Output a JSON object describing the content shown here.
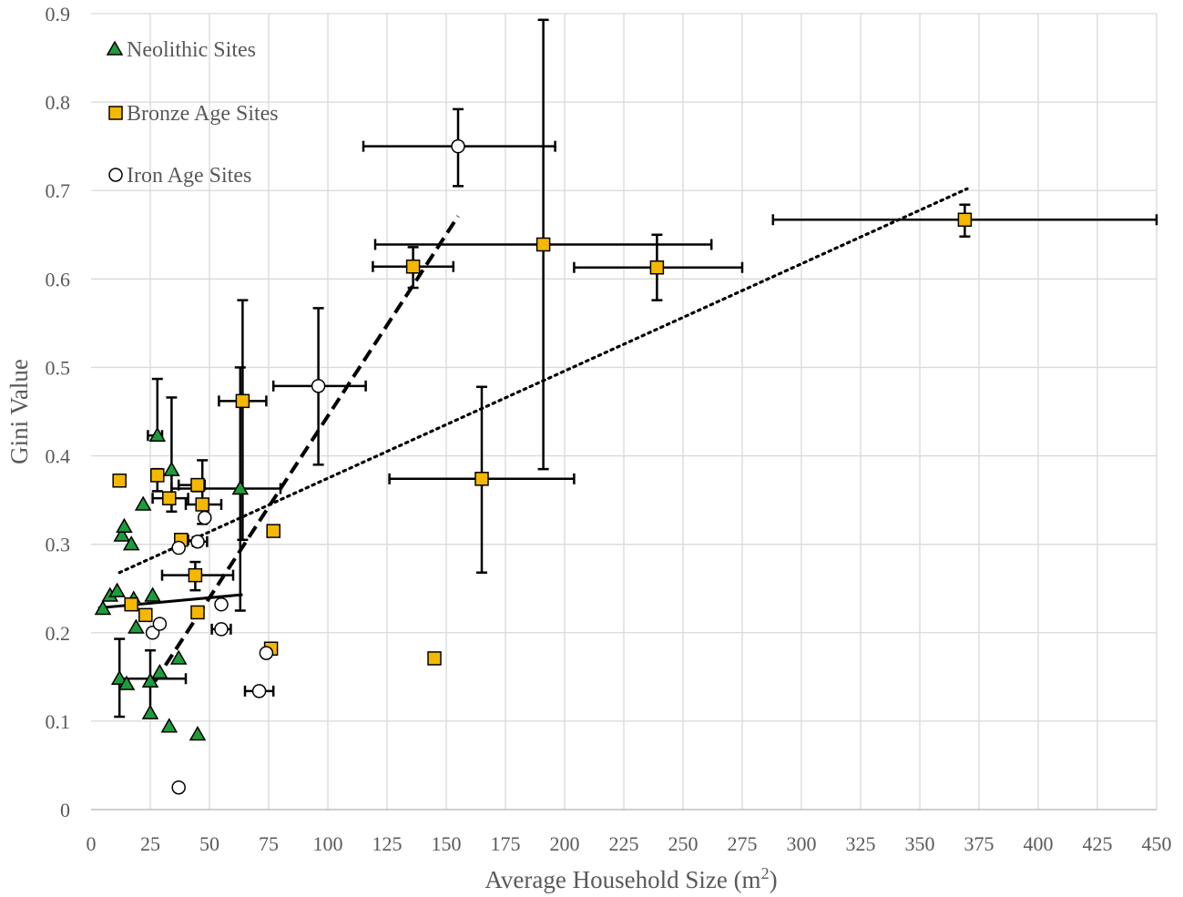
{
  "chart_data": {
    "type": "scatter",
    "xlabel": "Average Household Size (m",
    "xlabel_sup": "2",
    "xlabel_close": ")",
    "ylabel": "Gini Value",
    "xlim": [
      0,
      450
    ],
    "ylim": [
      0,
      0.9
    ],
    "x_ticks": [
      "0",
      "25",
      "50",
      "75",
      "100",
      "125",
      "150",
      "175",
      "200",
      "225",
      "250",
      "275",
      "300",
      "325",
      "350",
      "375",
      "400",
      "425",
      "450"
    ],
    "y_ticks": [
      "0",
      "0.1",
      "0.2",
      "0.3",
      "0.4",
      "0.5",
      "0.6",
      "0.7",
      "0.8",
      "0.9"
    ],
    "grid": true,
    "legend_position": "top-left",
    "series": [
      {
        "name": "Neolithic Sites",
        "marker": "triangle",
        "color": "#1e9c3c",
        "points": [
          {
            "x": 5,
            "y": 0.227
          },
          {
            "x": 8,
            "y": 0.242
          },
          {
            "x": 11,
            "y": 0.247
          },
          {
            "x": 12,
            "y": 0.148,
            "yerr": [
              0.105,
              0.193
            ],
            "xerr": [
              12,
              40
            ]
          },
          {
            "x": 13,
            "y": 0.31
          },
          {
            "x": 14,
            "y": 0.32
          },
          {
            "x": 15,
            "y": 0.142
          },
          {
            "x": 17,
            "y": 0.3
          },
          {
            "x": 18,
            "y": 0.238
          },
          {
            "x": 19,
            "y": 0.206
          },
          {
            "x": 22,
            "y": 0.345
          },
          {
            "x": 25,
            "y": 0.109
          },
          {
            "x": 25,
            "y": 0.145,
            "yerr": [
              0.105,
              0.18
            ]
          },
          {
            "x": 26,
            "y": 0.242
          },
          {
            "x": 28,
            "y": 0.423,
            "yerr": [
              0.42,
              0.487
            ],
            "xerr": [
              24,
              30
            ]
          },
          {
            "x": 29,
            "y": 0.155
          },
          {
            "x": 33,
            "y": 0.094
          },
          {
            "x": 34,
            "y": 0.384,
            "yerr": [
              0.337,
              0.466
            ]
          },
          {
            "x": 37,
            "y": 0.171
          },
          {
            "x": 45,
            "y": 0.085
          },
          {
            "x": 63,
            "y": 0.363,
            "yerr": [
              0.225,
              0.5
            ],
            "xerr": [
              34,
              80
            ]
          }
        ]
      },
      {
        "name": "Bronze Age Sites",
        "marker": "square",
        "color": "#f5b800",
        "points": [
          {
            "x": 12,
            "y": 0.372
          },
          {
            "x": 17,
            "y": 0.232
          },
          {
            "x": 23,
            "y": 0.22
          },
          {
            "x": 28,
            "y": 0.378,
            "yerr": [
              0.36,
              0.385
            ]
          },
          {
            "x": 33,
            "y": 0.352,
            "xerr": [
              26,
              41
            ]
          },
          {
            "x": 38,
            "y": 0.305,
            "xerr": [
              36,
              41
            ]
          },
          {
            "x": 44,
            "y": 0.265,
            "yerr": [
              0.248,
              0.28
            ],
            "xerr": [
              30,
              60
            ]
          },
          {
            "x": 45,
            "y": 0.223
          },
          {
            "x": 45,
            "y": 0.367,
            "yerr": [
              0.36,
              0.37
            ],
            "xerr": [
              37,
              48
            ]
          },
          {
            "x": 47,
            "y": 0.345,
            "yerr": [
              0.323,
              0.395
            ],
            "xerr": [
              40,
              55
            ]
          },
          {
            "x": 64,
            "y": 0.462,
            "yerr": [
              0.305,
              0.576
            ],
            "xerr": [
              54,
              74
            ]
          },
          {
            "x": 76,
            "y": 0.182
          },
          {
            "x": 77,
            "y": 0.315
          },
          {
            "x": 136,
            "y": 0.614,
            "yerr": [
              0.59,
              0.636
            ],
            "xerr": [
              119,
              153
            ]
          },
          {
            "x": 145,
            "y": 0.171
          },
          {
            "x": 165,
            "y": 0.374,
            "yerr": [
              0.268,
              0.478
            ],
            "xerr": [
              126,
              204
            ]
          },
          {
            "x": 191,
            "y": 0.639,
            "yerr": [
              0.385,
              0.893
            ],
            "xerr": [
              120,
              262
            ]
          },
          {
            "x": 239,
            "y": 0.613,
            "yerr": [
              0.576,
              0.65
            ],
            "xerr": [
              204,
              275
            ]
          },
          {
            "x": 369,
            "y": 0.667,
            "yerr": [
              0.648,
              0.684
            ],
            "xerr": [
              288,
              450
            ]
          }
        ]
      },
      {
        "name": "Iron Age Sites",
        "marker": "circle",
        "color": "#ffffff",
        "points": [
          {
            "x": 26,
            "y": 0.2
          },
          {
            "x": 29,
            "y": 0.21
          },
          {
            "x": 37,
            "y": 0.025
          },
          {
            "x": 37,
            "y": 0.296
          },
          {
            "x": 45,
            "y": 0.303,
            "xerr": [
              43,
              49
            ]
          },
          {
            "x": 48,
            "y": 0.33
          },
          {
            "x": 55,
            "y": 0.232
          },
          {
            "x": 55,
            "y": 0.204,
            "xerr": [
              51,
              59
            ]
          },
          {
            "x": 71,
            "y": 0.134,
            "xerr": [
              65,
              77
            ]
          },
          {
            "x": 74,
            "y": 0.177
          },
          {
            "x": 96,
            "y": 0.479,
            "yerr": [
              0.39,
              0.567
            ],
            "xerr": [
              77,
              116
            ]
          },
          {
            "x": 155,
            "y": 0.75,
            "yerr": [
              0.705,
              0.792
            ],
            "xerr": [
              115,
              196
            ]
          }
        ]
      }
    ],
    "trendlines": [
      {
        "series": "Neolithic Sites",
        "style": "solid",
        "x": [
          3,
          64
        ],
        "y": [
          0.228,
          0.243
        ]
      },
      {
        "series": "Bronze Age Sites",
        "style": "dotted",
        "x": [
          12,
          370
        ],
        "y": [
          0.268,
          0.702
        ]
      },
      {
        "series": "Iron Age Sites",
        "style": "dashed",
        "x": [
          27,
          155
        ],
        "y": [
          0.145,
          0.671
        ]
      }
    ]
  }
}
